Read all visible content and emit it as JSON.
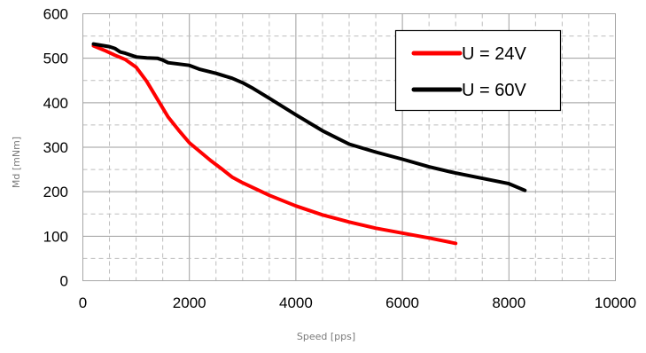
{
  "chart_data": {
    "type": "line",
    "xlabel": "Speed [pps]",
    "ylabel": "Md [mNm]",
    "xlim": [
      0,
      10000
    ],
    "ylim": [
      0,
      600
    ],
    "x_ticks": [
      0,
      2000,
      4000,
      6000,
      8000,
      10000
    ],
    "y_ticks": [
      0,
      100,
      200,
      300,
      400,
      500,
      600
    ],
    "x_tick_labels": [
      "0",
      "2000",
      "4000",
      "6000",
      "8000",
      "10000"
    ],
    "y_tick_labels": [
      "0",
      "100",
      "200",
      "300",
      "400",
      "500",
      "600"
    ],
    "x_minor_step": 500,
    "y_minor_step": 50,
    "grid": true,
    "legend_position": "top-right",
    "series": [
      {
        "name": "U = 24V",
        "color": "#ff0000",
        "points": [
          [
            200,
            528
          ],
          [
            400,
            518
          ],
          [
            600,
            507
          ],
          [
            800,
            497
          ],
          [
            1000,
            480
          ],
          [
            1200,
            448
          ],
          [
            1400,
            408
          ],
          [
            1600,
            368
          ],
          [
            1800,
            338
          ],
          [
            2000,
            310
          ],
          [
            2200,
            290
          ],
          [
            2400,
            270
          ],
          [
            2600,
            252
          ],
          [
            2800,
            233
          ],
          [
            3000,
            220
          ],
          [
            3500,
            192
          ],
          [
            4000,
            168
          ],
          [
            4500,
            148
          ],
          [
            5000,
            132
          ],
          [
            5500,
            118
          ],
          [
            6000,
            107
          ],
          [
            6500,
            96
          ],
          [
            7000,
            84
          ]
        ]
      },
      {
        "name": "U = 60V",
        "color": "#000000",
        "points": [
          [
            200,
            532
          ],
          [
            500,
            526
          ],
          [
            600,
            522
          ],
          [
            700,
            514
          ],
          [
            800,
            511
          ],
          [
            1000,
            503
          ],
          [
            1200,
            501
          ],
          [
            1400,
            500
          ],
          [
            1500,
            496
          ],
          [
            1600,
            490
          ],
          [
            2000,
            484
          ],
          [
            2200,
            475
          ],
          [
            2500,
            466
          ],
          [
            2800,
            455
          ],
          [
            3000,
            445
          ],
          [
            3200,
            432
          ],
          [
            3500,
            410
          ],
          [
            4000,
            373
          ],
          [
            4500,
            337
          ],
          [
            5000,
            307
          ],
          [
            5500,
            289
          ],
          [
            6000,
            273
          ],
          [
            6500,
            256
          ],
          [
            7000,
            242
          ],
          [
            7500,
            230
          ],
          [
            8000,
            218
          ],
          [
            8300,
            203
          ]
        ]
      }
    ]
  }
}
